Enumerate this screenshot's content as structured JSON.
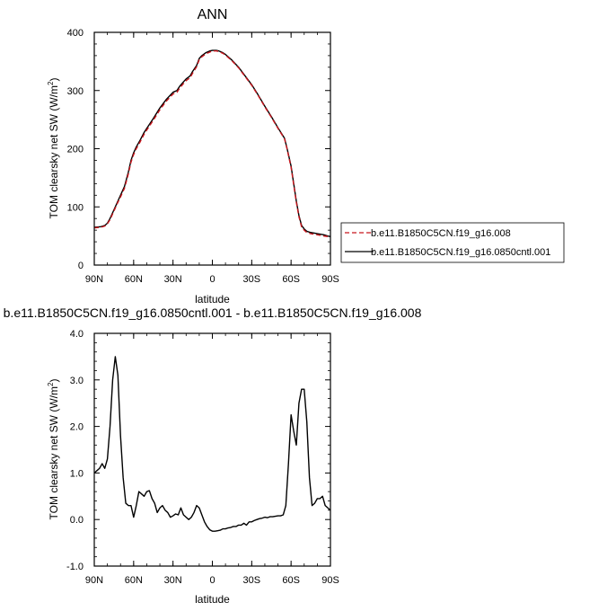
{
  "chart_data": [
    {
      "type": "line",
      "title": "ANN",
      "xlabel": "latitude",
      "ylabel_main": "TOM clearsky net SW (W/m",
      "ylabel_sup": "2",
      "ylabel_close": ")",
      "xlim": [
        -90,
        90
      ],
      "ylim": [
        0,
        400
      ],
      "xticks": [
        {
          "v": -90,
          "label": "90N"
        },
        {
          "v": -60,
          "label": "60N"
        },
        {
          "v": -30,
          "label": "30N"
        },
        {
          "v": 0,
          "label": "0"
        },
        {
          "v": 30,
          "label": "30S"
        },
        {
          "v": 60,
          "label": "60S"
        },
        {
          "v": 90,
          "label": "90S"
        }
      ],
      "yticks": [
        {
          "v": 0,
          "label": "0"
        },
        {
          "v": 100,
          "label": "100"
        },
        {
          "v": 200,
          "label": "200"
        },
        {
          "v": 300,
          "label": "300"
        },
        {
          "v": 400,
          "label": "400"
        }
      ],
      "legend_placement": "right-outside",
      "series": [
        {
          "name": "b.e11.B1850C5CN.f19_g16.0850cntl.001",
          "color": "#000000",
          "dash": "solid",
          "x": [
            -90,
            -85,
            -82,
            -80,
            -78,
            -75,
            -72,
            -70,
            -67,
            -64,
            -62,
            -60,
            -58,
            -55,
            -52,
            -50,
            -45,
            -40,
            -35,
            -30,
            -27,
            -25,
            -22,
            -20,
            -17,
            -15,
            -12,
            -10,
            -8,
            -5,
            -2,
            0,
            3,
            5,
            8,
            10,
            15,
            20,
            25,
            30,
            35,
            40,
            45,
            50,
            55,
            57,
            60,
            62,
            64,
            66,
            68,
            70,
            72,
            75,
            80,
            85,
            88,
            90
          ],
          "y": [
            65,
            66,
            68,
            72,
            80,
            95,
            110,
            120,
            135,
            160,
            180,
            193,
            203,
            215,
            228,
            235,
            252,
            270,
            285,
            297,
            300,
            307,
            315,
            320,
            325,
            333,
            343,
            355,
            360,
            365,
            368,
            369,
            369,
            368,
            365,
            362,
            352,
            340,
            325,
            310,
            292,
            273,
            255,
            236,
            218,
            200,
            170,
            140,
            110,
            85,
            68,
            62,
            58,
            56,
            54,
            52,
            50,
            49
          ]
        },
        {
          "name": "b.e11.B1850C5CN.f19_g16.008",
          "color": "#c8161d",
          "dash": "dashed",
          "x": [
            -90,
            -85,
            -82,
            -80,
            -78,
            -75,
            -72,
            -70,
            -67,
            -64,
            -62,
            -60,
            -58,
            -55,
            -52,
            -50,
            -45,
            -40,
            -35,
            -30,
            -27,
            -25,
            -22,
            -20,
            -17,
            -15,
            -12,
            -10,
            -8,
            -5,
            -2,
            0,
            3,
            5,
            8,
            10,
            15,
            20,
            25,
            30,
            35,
            40,
            45,
            50,
            55,
            57,
            60,
            62,
            64,
            66,
            68,
            70,
            72,
            75,
            80,
            85,
            88,
            90
          ],
          "y": [
            64,
            65,
            67,
            71,
            78,
            93,
            108,
            117,
            132,
            157,
            177,
            190,
            200,
            212,
            225,
            232,
            249,
            267,
            282,
            294,
            297,
            304,
            312,
            317,
            322,
            330,
            341,
            353,
            358,
            363,
            366,
            368,
            368,
            367,
            364,
            361,
            351,
            339,
            324,
            309,
            291,
            272,
            254,
            235,
            217,
            199,
            168,
            138,
            108,
            83,
            66,
            60,
            56,
            54,
            52,
            50,
            49,
            48
          ]
        }
      ]
    },
    {
      "type": "line",
      "title": "b.e11.B1850C5CN.f19_g16.0850cntl.001 - b.e11.B1850C5CN.f19_g16.008",
      "xlabel": "latitude",
      "ylabel_main": "TOM clearsky net SW (W/m",
      "ylabel_sup": "2",
      "ylabel_close": ")",
      "xlim": [
        -90,
        90
      ],
      "ylim": [
        -1.0,
        4.0
      ],
      "xticks": [
        {
          "v": -90,
          "label": "90N"
        },
        {
          "v": -60,
          "label": "60N"
        },
        {
          "v": -30,
          "label": "30N"
        },
        {
          "v": 0,
          "label": "0"
        },
        {
          "v": 30,
          "label": "30S"
        },
        {
          "v": 60,
          "label": "60S"
        },
        {
          "v": 90,
          "label": "90S"
        }
      ],
      "yticks": [
        {
          "v": -1.0,
          "label": "-1.0"
        },
        {
          "v": 0.0,
          "label": "0.0"
        },
        {
          "v": 1.0,
          "label": "1.0"
        },
        {
          "v": 2.0,
          "label": "2.0"
        },
        {
          "v": 3.0,
          "label": "3.0"
        },
        {
          "v": 4.0,
          "label": "4.0"
        }
      ],
      "series": [
        {
          "color": "#000000",
          "dash": "solid",
          "x": [
            -90,
            -88,
            -86,
            -84,
            -82,
            -80,
            -78,
            -76,
            -74,
            -72,
            -70,
            -68,
            -66,
            -64,
            -62,
            -60,
            -58,
            -56,
            -54,
            -52,
            -50,
            -48,
            -46,
            -44,
            -42,
            -40,
            -38,
            -36,
            -34,
            -32,
            -30,
            -28,
            -26,
            -24,
            -22,
            -20,
            -18,
            -16,
            -14,
            -12,
            -10,
            -8,
            -6,
            -4,
            -2,
            0,
            2,
            4,
            6,
            8,
            10,
            12,
            14,
            16,
            18,
            20,
            22,
            24,
            26,
            28,
            30,
            32,
            34,
            36,
            38,
            40,
            42,
            44,
            46,
            48,
            50,
            52,
            54,
            56,
            58,
            60,
            62,
            64,
            66,
            68,
            70,
            72,
            74,
            76,
            78,
            80,
            82,
            84,
            86,
            88,
            90
          ],
          "y": [
            1.0,
            1.05,
            1.1,
            1.2,
            1.1,
            1.3,
            2.0,
            3.0,
            3.5,
            3.1,
            1.8,
            0.9,
            0.35,
            0.3,
            0.3,
            0.05,
            0.3,
            0.6,
            0.55,
            0.5,
            0.6,
            0.62,
            0.45,
            0.35,
            0.15,
            0.25,
            0.3,
            0.2,
            0.15,
            0.05,
            0.08,
            0.12,
            0.1,
            0.25,
            0.1,
            0.05,
            0.0,
            0.05,
            0.15,
            0.3,
            0.25,
            0.1,
            -0.05,
            -0.15,
            -0.22,
            -0.25,
            -0.25,
            -0.24,
            -0.23,
            -0.2,
            -0.2,
            -0.18,
            -0.17,
            -0.15,
            -0.15,
            -0.12,
            -0.12,
            -0.08,
            -0.12,
            -0.05,
            -0.05,
            -0.02,
            0.0,
            0.02,
            0.03,
            0.05,
            0.04,
            0.06,
            0.06,
            0.07,
            0.08,
            0.08,
            0.1,
            0.3,
            1.2,
            2.25,
            1.9,
            1.6,
            2.5,
            2.8,
            2.8,
            2.1,
            0.9,
            0.3,
            0.35,
            0.45,
            0.45,
            0.5,
            0.3,
            0.25,
            0.2
          ]
        }
      ]
    }
  ]
}
